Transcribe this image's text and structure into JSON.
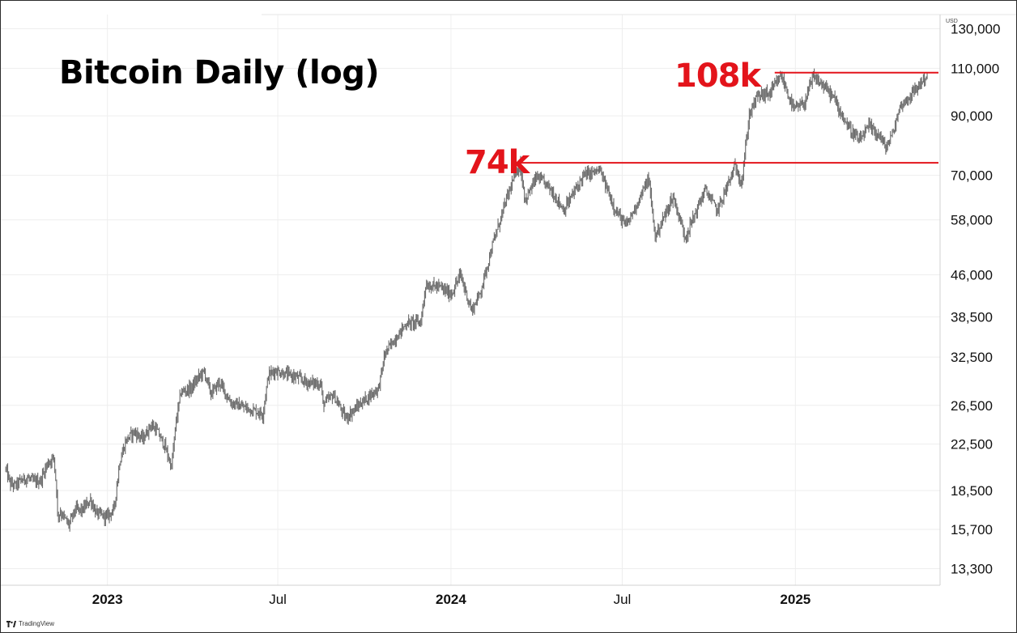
{
  "title": "Bitcoin Daily (log)",
  "currency_label": "USD",
  "brand": "TradingView",
  "colors": {
    "price": "#6e6e6e",
    "level": "#e3141b",
    "grid": "#eeeeee",
    "text": "#000000"
  },
  "chart_data": {
    "type": "line",
    "scale": "log",
    "grid": true,
    "x_tick_labels": [
      {
        "date": "2023-01-01",
        "label": "2023",
        "bold": true
      },
      {
        "date": "2023-07-01",
        "label": "Jul",
        "bold": false
      },
      {
        "date": "2024-01-01",
        "label": "2024",
        "bold": true
      },
      {
        "date": "2024-07-01",
        "label": "Jul",
        "bold": false
      },
      {
        "date": "2025-01-01",
        "label": "2025",
        "bold": true
      }
    ],
    "y_ticks": [
      130000,
      110000,
      90000,
      70000,
      58000,
      46000,
      38500,
      32500,
      26500,
      22500,
      18500,
      15700,
      13300
    ],
    "y_tick_labels": [
      "130,000",
      "110,000",
      "90,000",
      "70,000",
      "58,000",
      "46,000",
      "38,500",
      "32,500",
      "26,500",
      "22,500",
      "18,500",
      "15,700",
      "13,300"
    ],
    "ylim": [
      12400,
      138000
    ],
    "xlim": [
      "2022-09-14",
      "2025-06-02"
    ],
    "levels": [
      {
        "label": "108k",
        "value": 108000,
        "from": "2024-12-10"
      },
      {
        "label": "74k",
        "value": 73800,
        "from": "2024-03-14"
      }
    ],
    "series": [
      {
        "x": [
          "2022-09-15",
          "2022-09-20",
          "2022-09-25",
          "2022-10-01",
          "2022-10-08",
          "2022-10-15",
          "2022-10-22",
          "2022-10-29",
          "2022-11-05",
          "2022-11-08",
          "2022-11-09",
          "2022-11-12",
          "2022-11-21",
          "2022-11-28",
          "2022-12-05",
          "2022-12-14",
          "2022-12-20",
          "2022-12-31",
          "2023-01-08",
          "2023-01-14",
          "2023-01-21",
          "2023-01-29",
          "2023-02-08",
          "2023-02-16",
          "2023-02-22",
          "2023-03-03",
          "2023-03-10",
          "2023-03-15",
          "2023-03-20",
          "2023-03-31",
          "2023-04-10",
          "2023-04-14",
          "2023-04-21",
          "2023-04-30",
          "2023-05-12",
          "2023-05-25",
          "2023-06-10",
          "2023-06-15",
          "2023-06-21",
          "2023-06-28",
          "2023-07-10",
          "2023-07-20",
          "2023-08-01",
          "2023-08-16",
          "2023-08-18",
          "2023-08-29",
          "2023-09-11",
          "2023-09-30",
          "2023-10-16",
          "2023-10-23",
          "2023-10-31",
          "2023-11-15",
          "2023-11-30",
          "2023-12-05",
          "2023-12-20",
          "2024-01-01",
          "2024-01-11",
          "2024-01-23",
          "2024-02-01",
          "2024-02-14",
          "2024-02-28",
          "2024-03-05",
          "2024-03-14",
          "2024-03-20",
          "2024-04-01",
          "2024-04-13",
          "2024-04-30",
          "2024-05-21",
          "2024-06-07",
          "2024-06-24",
          "2024-07-05",
          "2024-07-14",
          "2024-07-29",
          "2024-08-05",
          "2024-08-24",
          "2024-09-06",
          "2024-09-27",
          "2024-10-10",
          "2024-10-29",
          "2024-11-05",
          "2024-11-13",
          "2024-11-22",
          "2024-12-05",
          "2024-12-17",
          "2024-12-30",
          "2025-01-10",
          "2025-01-20",
          "2025-01-31",
          "2025-02-10",
          "2025-02-25",
          "2025-03-10",
          "2025-03-20",
          "2025-04-01",
          "2025-04-07",
          "2025-04-15",
          "2025-04-22",
          "2025-05-08",
          "2025-05-14",
          "2025-05-21"
        ],
        "y": [
          20200,
          19000,
          18900,
          19300,
          19500,
          19200,
          19300,
          20700,
          21300,
          18500,
          16600,
          16900,
          16000,
          17100,
          17000,
          17800,
          16800,
          16550,
          17100,
          20900,
          22900,
          23700,
          23000,
          24400,
          23900,
          22300,
          20400,
          24800,
          28000,
          28500,
          30200,
          30500,
          27800,
          29250,
          26800,
          26300,
          25800,
          25500,
          30100,
          30700,
          30200,
          29900,
          29200,
          29000,
          26600,
          27700,
          25100,
          27000,
          28500,
          33000,
          34600,
          37500,
          37700,
          44000,
          43700,
          42300,
          46000,
          39500,
          42600,
          52000,
          62500,
          67000,
          73500,
          63000,
          69500,
          67000,
          60500,
          70000,
          71500,
          60300,
          56500,
          60700,
          69000,
          54000,
          64000,
          53900,
          65900,
          60300,
          72700,
          68000,
          90500,
          98000,
          99000,
          106500,
          92500,
          94500,
          106000,
          102000,
          97500,
          86500,
          80800,
          86000,
          82500,
          78500,
          84000,
          93500,
          100000,
          103500,
          106500
        ]
      }
    ]
  }
}
